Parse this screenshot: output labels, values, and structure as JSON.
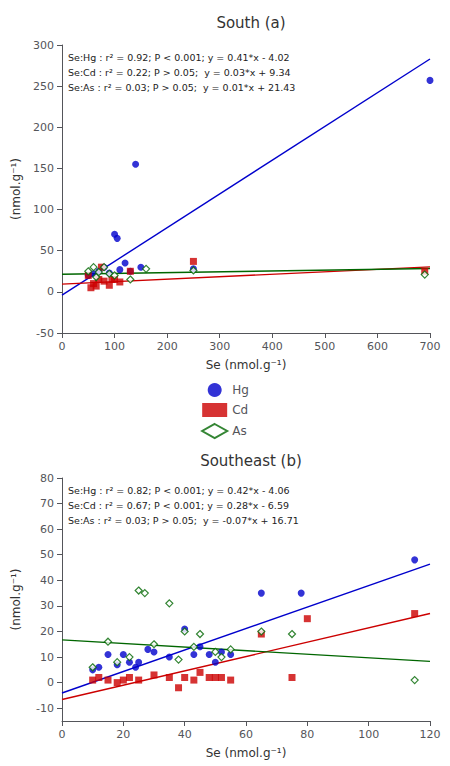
{
  "chart_data": [
    {
      "type": "scatter",
      "title": "South (a)",
      "xlabel": "Se (nmol.g⁻¹)",
      "ylabel": "(nmol.g⁻¹)",
      "annotation": "Se:Hg : r² = 0.92; P < 0.001; y = 0.41*x - 4.02\nSe:Cd : r² = 0.22; P > 0.05;  y = 0.03*x + 9.34\nSe:As : r² = 0.03; P > 0.05;  y = 0.01*x + 21.43",
      "xlim": [
        0,
        700
      ],
      "ylim": [
        -50,
        300
      ],
      "xticks": [
        0,
        100,
        200,
        300,
        400,
        500,
        600,
        700
      ],
      "yticks": [
        -50,
        0,
        50,
        100,
        150,
        200,
        250,
        300
      ],
      "grid": false,
      "series": [
        {
          "name": "Hg",
          "type": "scatter",
          "color": "#0000cc",
          "marker": "circle",
          "x": [
            50,
            60,
            70,
            80,
            90,
            100,
            105,
            110,
            120,
            130,
            140,
            150,
            250,
            700
          ],
          "values": [
            20,
            22,
            25,
            30,
            23,
            70,
            65,
            27,
            35,
            25,
            155,
            30,
            28,
            257
          ]
        },
        {
          "name": "Cd",
          "type": "scatter",
          "color": "#cc0000",
          "marker": "square",
          "x": [
            50,
            55,
            60,
            65,
            70,
            75,
            80,
            90,
            95,
            100,
            110,
            130,
            250,
            690
          ],
          "values": [
            20,
            5,
            10,
            7,
            15,
            30,
            13,
            8,
            15,
            15,
            12,
            25,
            37,
            25
          ]
        },
        {
          "name": "As",
          "type": "scatter",
          "color": "#006600",
          "marker": "hollow_diamond",
          "x": [
            50,
            60,
            65,
            70,
            80,
            90,
            100,
            130,
            160,
            250,
            690
          ],
          "values": [
            25,
            30,
            18,
            24,
            30,
            22,
            20,
            15,
            28,
            26,
            21
          ]
        },
        {
          "name": "Hg",
          "type": "line",
          "color": "#0000cc",
          "x": [
            0,
            700
          ],
          "values": [
            -4.02,
            282.98
          ]
        },
        {
          "name": "Cd",
          "type": "line",
          "color": "#cc0000",
          "x": [
            0,
            700
          ],
          "values": [
            9.34,
            30.34
          ]
        },
        {
          "name": "As",
          "type": "line",
          "color": "#006600",
          "x": [
            0,
            700
          ],
          "values": [
            21.43,
            28.43
          ]
        }
      ]
    },
    {
      "type": "scatter",
      "title": "Southeast (b)",
      "xlabel": "Se (nmol.g⁻¹)",
      "ylabel": "(nmol.g⁻¹)",
      "annotation": "Se:Hg : r² = 0.82; P < 0.001; y = 0.42*x - 4.06\nSe:Cd : r² = 0.67; P < 0.001; y = 0.28*x - 6.59\nSe:As : r² = 0.03; P > 0.05;  y = -0.07*x + 16.71",
      "xlim": [
        0,
        120
      ],
      "ylim": [
        -15,
        80
      ],
      "xticks": [
        0,
        20,
        40,
        60,
        80,
        100,
        120
      ],
      "yticks": [
        -10,
        0,
        10,
        20,
        30,
        40,
        50,
        60,
        70,
        80
      ],
      "grid": false,
      "series": [
        {
          "name": "Hg",
          "type": "scatter",
          "color": "#0000cc",
          "marker": "circle",
          "x": [
            10,
            12,
            15,
            18,
            20,
            22,
            24,
            25,
            28,
            30,
            35,
            40,
            43,
            45,
            48,
            50,
            52,
            55,
            65,
            78,
            115
          ],
          "values": [
            5,
            6,
            11,
            7,
            11,
            8,
            6,
            8,
            13,
            12,
            10,
            21,
            11,
            14,
            11,
            8,
            12,
            11,
            35,
            35,
            48
          ]
        },
        {
          "name": "Cd",
          "type": "scatter",
          "color": "#cc0000",
          "marker": "square",
          "x": [
            10,
            12,
            15,
            18,
            20,
            22,
            25,
            30,
            35,
            38,
            40,
            43,
            45,
            48,
            50,
            52,
            55,
            65,
            75,
            80,
            115
          ],
          "values": [
            1,
            2,
            1,
            0,
            1,
            2,
            1,
            3,
            2,
            -2,
            2,
            1,
            4,
            2,
            2,
            2,
            1,
            19,
            2,
            25,
            27
          ]
        },
        {
          "name": "As",
          "type": "scatter",
          "color": "#006600",
          "marker": "hollow_diamond",
          "x": [
            10,
            15,
            18,
            22,
            25,
            27,
            30,
            35,
            38,
            40,
            43,
            45,
            50,
            52,
            55,
            65,
            75,
            115
          ],
          "values": [
            6,
            16,
            8,
            10,
            36,
            35,
            15,
            31,
            9,
            20,
            14,
            19,
            12,
            10,
            13,
            20,
            19,
            1
          ]
        },
        {
          "name": "Hg",
          "type": "line",
          "color": "#0000cc",
          "x": [
            0,
            120
          ],
          "values": [
            -4.06,
            46.34
          ]
        },
        {
          "name": "Cd",
          "type": "line",
          "color": "#cc0000",
          "x": [
            0,
            120
          ],
          "values": [
            -6.59,
            27.01
          ]
        },
        {
          "name": "As",
          "type": "line",
          "color": "#006600",
          "x": [
            0,
            120
          ],
          "values": [
            16.71,
            8.31
          ]
        }
      ]
    }
  ]
}
